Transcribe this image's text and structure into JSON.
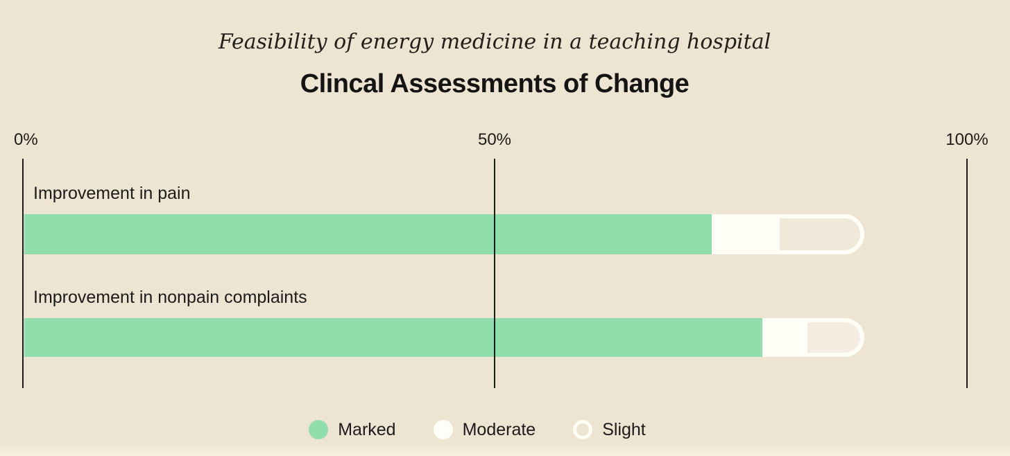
{
  "header": {
    "subtitle": "Feasibility of energy medicine in a teaching hospital",
    "title": "Clincal Assessments of Change"
  },
  "colors": {
    "background": "#EDE4D2",
    "text": "#1B1B1B",
    "axis_line": "#1C1C1C",
    "marked": "#91DEAD",
    "moderate": "#FFFEF6",
    "slight_fill": [
      "#F0E8D9",
      "#F5ECE2"
    ],
    "slight_outline": "#FFFEF6"
  },
  "chart_data": {
    "type": "bar",
    "orientation": "horizontal",
    "stacked": true,
    "unit": "%",
    "xlim": [
      0,
      100
    ],
    "grid": "vertical lines at ticks, drawn over bars",
    "x_ticks": [
      {
        "label": "0%",
        "value": 0
      },
      {
        "label": "50%",
        "value": 50
      },
      {
        "label": "100%",
        "value": 100
      }
    ],
    "categories": [
      "Improvement in pain",
      "Improvement in nonpain complaints"
    ],
    "series": [
      {
        "name": "Marked",
        "values": [
          72.9,
          78.3
        ]
      },
      {
        "name": "Moderate",
        "values": [
          6.8,
          4.3
        ]
      },
      {
        "name": "Slight",
        "values": [
          9.4,
          6.5
        ]
      }
    ],
    "totals": [
      89.1,
      89.1
    ],
    "legend_position": "bottom"
  }
}
